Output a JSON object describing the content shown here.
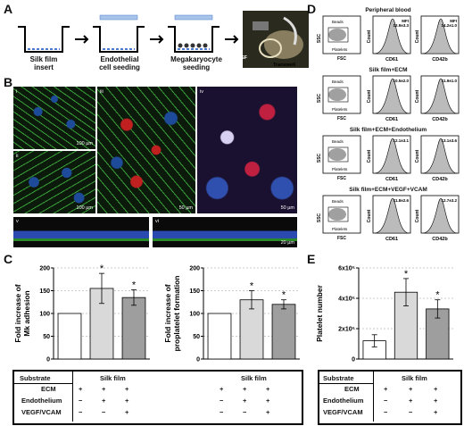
{
  "panels": {
    "A": "A",
    "B": "B",
    "C": "C",
    "D": "D",
    "E": "E"
  },
  "panelA": {
    "steps": [
      "Silk film\ninsert",
      "Endothelial\ncell seeding",
      "Megakaryocyte\nseeding"
    ],
    "photo_labels": {
      "sf": "SF",
      "transwell": "Transwell"
    }
  },
  "panelB": {
    "subpanels": [
      "i",
      "ii",
      "iii",
      "iv",
      "v",
      "vi"
    ],
    "scale_bars": {
      "i": "100 µm",
      "ii": "100 µm",
      "iii": "50 µm",
      "iv": "50 µm",
      "vi": "20 µm"
    }
  },
  "panelC": {
    "chart_data": [
      {
        "type": "bar",
        "ylabel": "Fold increase of\nMk adhesion",
        "ylim": [
          0,
          200
        ],
        "yticks": [
          0,
          50,
          100,
          150,
          200
        ],
        "values": [
          100,
          155,
          135
        ],
        "errors": [
          0,
          33,
          17
        ],
        "significance": [
          "",
          "*",
          "*"
        ],
        "colors": [
          "#ffffff",
          "#d9d9d9",
          "#9e9e9e"
        ]
      },
      {
        "type": "bar",
        "ylabel": "Fold increase of\nproplatelet formation",
        "ylim": [
          0,
          200
        ],
        "yticks": [
          0,
          50,
          100,
          150,
          200
        ],
        "values": [
          100,
          130,
          120
        ],
        "errors": [
          0,
          20,
          10
        ],
        "significance": [
          "",
          "*",
          "*"
        ],
        "colors": [
          "#ffffff",
          "#d9d9d9",
          "#9e9e9e"
        ]
      }
    ],
    "table": {
      "rows": [
        "Substrate",
        "ECM",
        "Endothelium",
        "VEGF/VCAM"
      ],
      "group_label": "Silk film",
      "marks": [
        [
          "+",
          "+",
          "+"
        ],
        [
          "−",
          "+",
          "+"
        ],
        [
          "−",
          "−",
          "+"
        ]
      ]
    }
  },
  "panelD": {
    "rows": [
      {
        "title": "Peripheral blood",
        "mfi_cd61": "MFI\n12.9±3.3",
        "mfi_cd42b": "MFI\n14.2±1.0"
      },
      {
        "title": "Silk film+ECM",
        "mfi_cd61": "10.5±2.0",
        "mfi_cd42b": "11.9±1.0"
      },
      {
        "title": "Silk film+ECM+Endothelium",
        "mfi_cd61": "12.1±3.1",
        "mfi_cd42b": "13.1±3.6"
      },
      {
        "title": "Silk film+ECM+VEGF+VCAM",
        "mfi_cd61": "11.8±2.6",
        "mfi_cd42b": "12.7±3.2"
      }
    ],
    "scatter_labels": {
      "ssc": "SSC",
      "fsc": "FSC",
      "beads": "Beads",
      "platelets": "Platelets"
    },
    "hist_labels": {
      "count": "Count",
      "cd61": "CD61",
      "cd42b": "CD42b"
    }
  },
  "panelE": {
    "chart_data": {
      "type": "bar",
      "ylabel": "Platelet number",
      "ylim": [
        0,
        600000
      ],
      "yticks": [
        "0",
        "2x10⁵",
        "4x10⁵",
        "6x10⁵"
      ],
      "values": [
        120000,
        440000,
        330000
      ],
      "errors": [
        40000,
        90000,
        60000
      ],
      "significance": [
        "",
        "*",
        "*"
      ],
      "colors": [
        "#ffffff",
        "#d9d9d9",
        "#9e9e9e"
      ]
    },
    "table": {
      "rows": [
        "Substrate",
        "ECM",
        "Endothelium",
        "VEGF/VCAM"
      ],
      "group_label": "Silk film",
      "marks": [
        [
          "+",
          "+",
          "+"
        ],
        [
          "−",
          "+",
          "+"
        ],
        [
          "−",
          "−",
          "+"
        ]
      ]
    }
  }
}
